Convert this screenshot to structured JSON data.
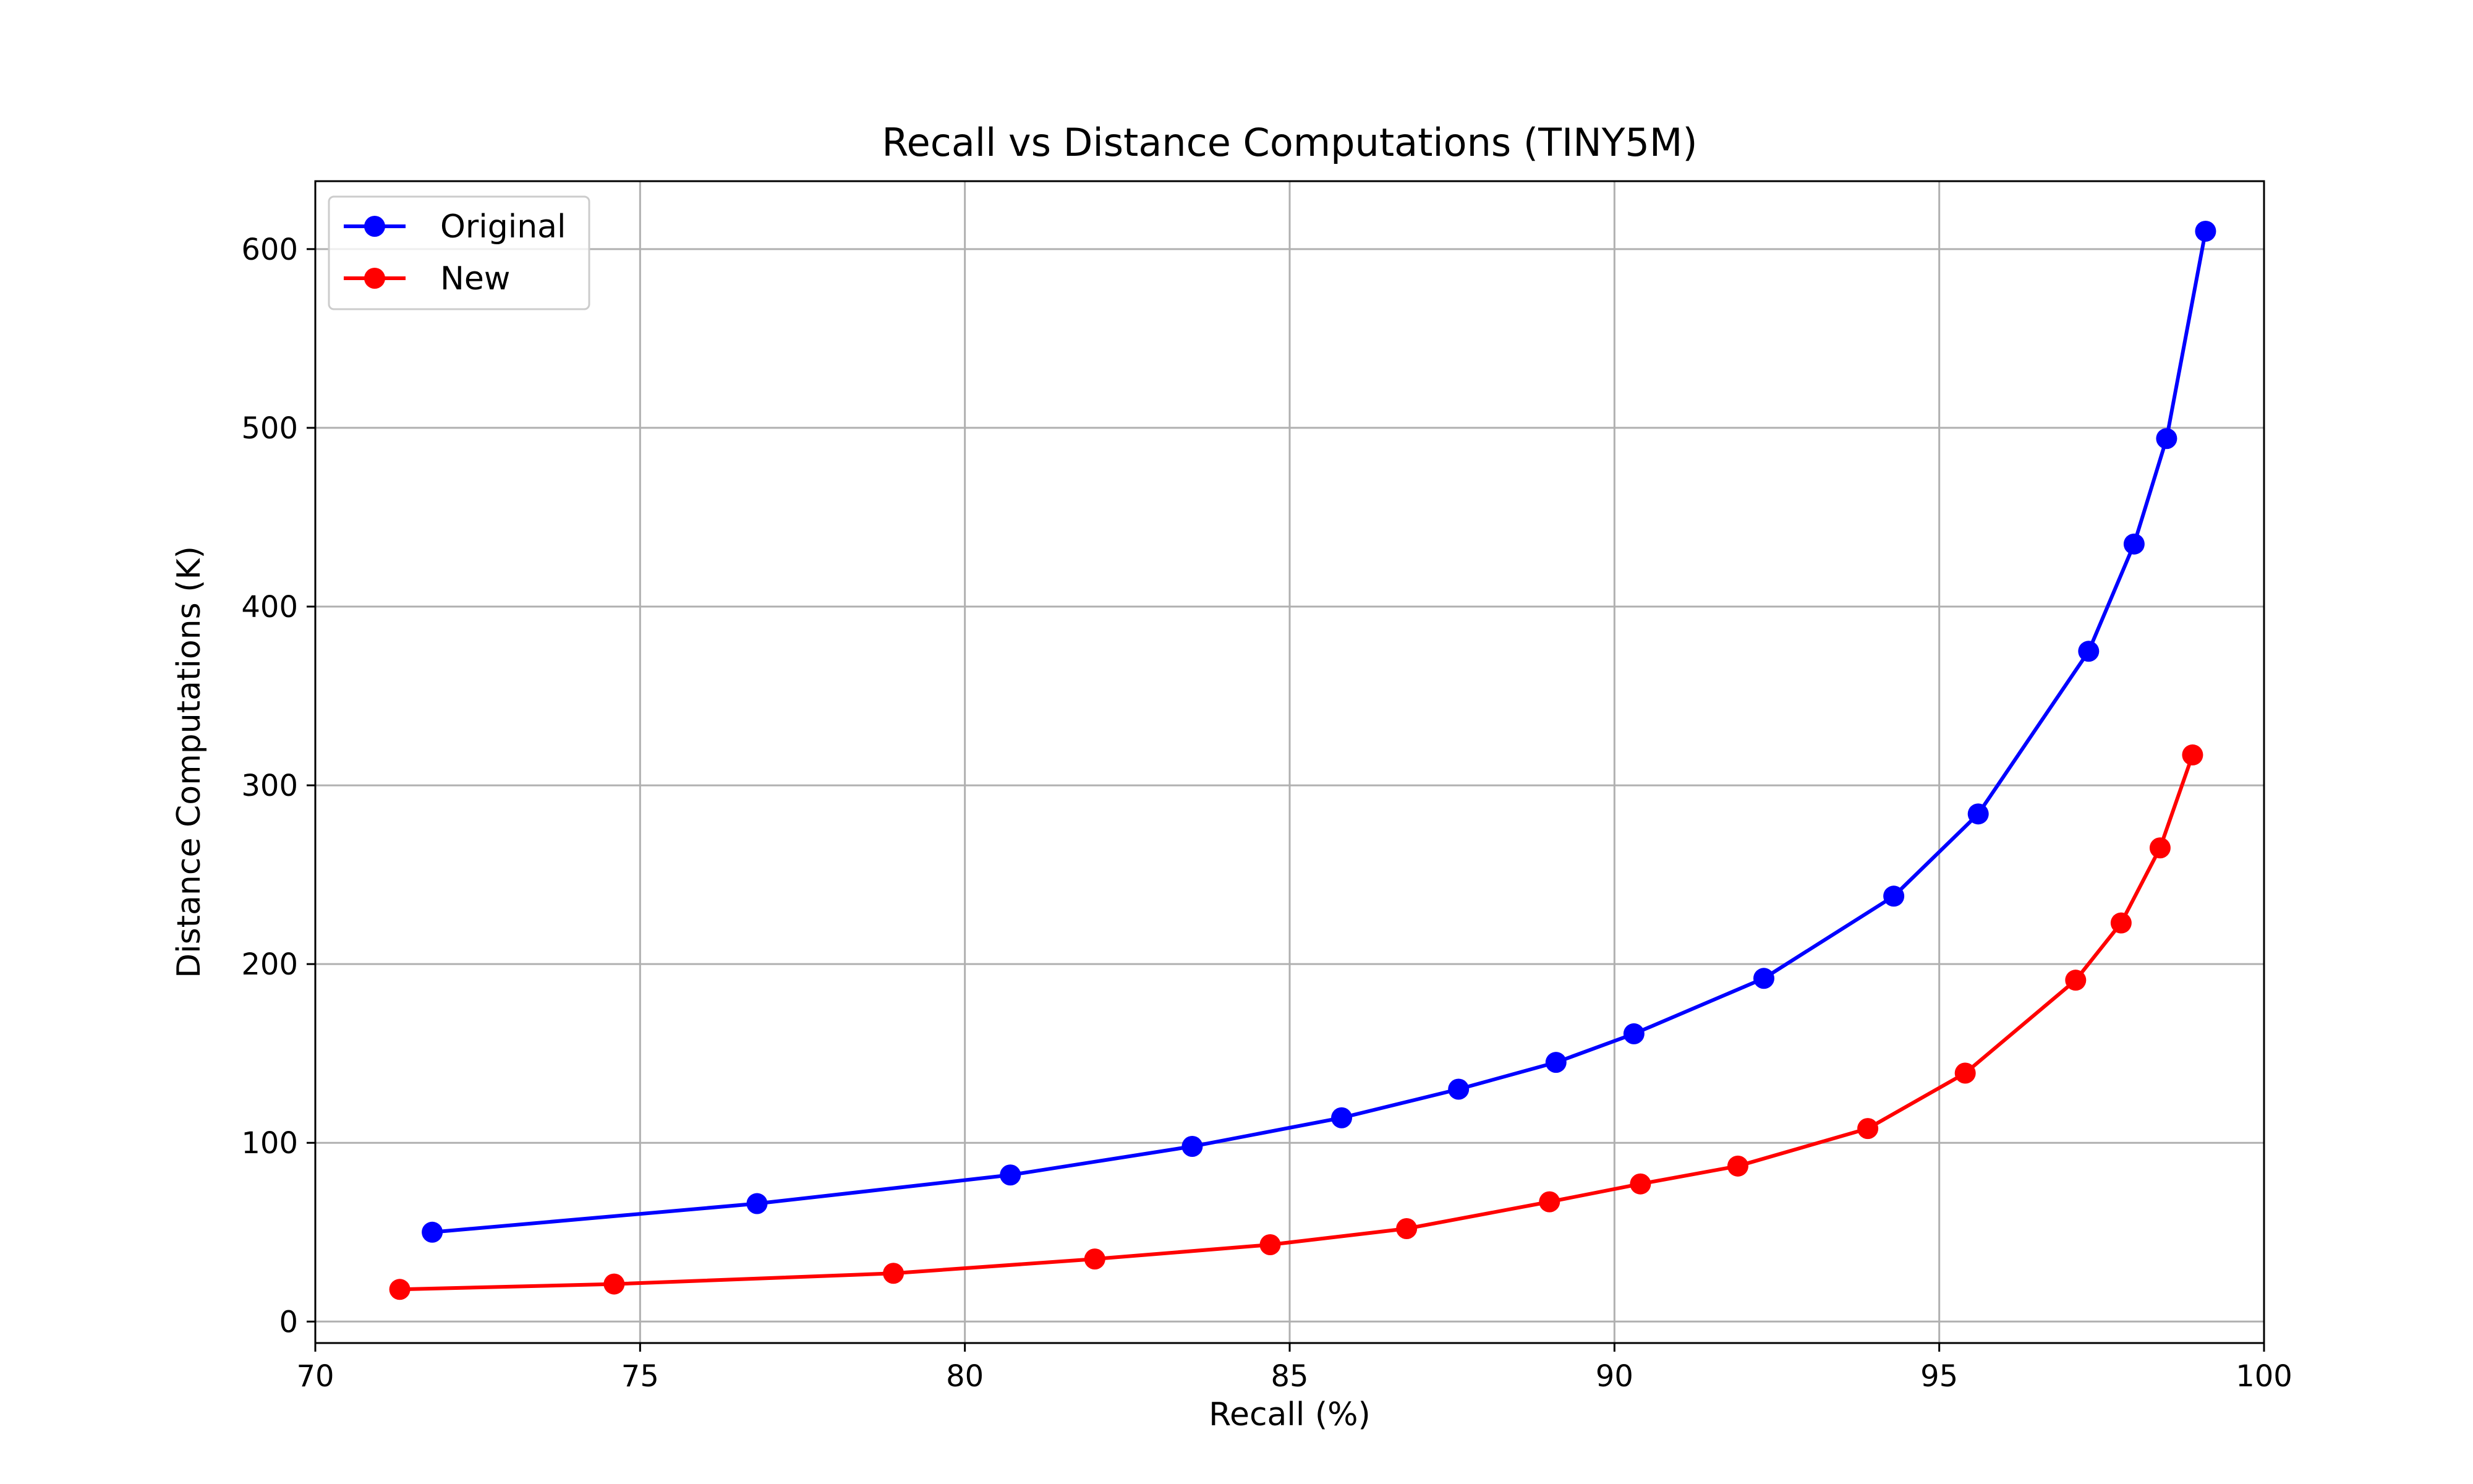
{
  "chart_data": {
    "type": "line",
    "title": "Recall vs Distance Computations (TINY5M)",
    "xlabel": "Recall (%)",
    "ylabel": "Distance Computations (K)",
    "xlim": [
      70,
      100
    ],
    "ylim": [
      -12,
      638
    ],
    "xticks": [
      70,
      75,
      80,
      85,
      90,
      95,
      100
    ],
    "yticks": [
      0,
      100,
      200,
      300,
      400,
      500,
      600
    ],
    "grid": true,
    "legend_position": "top-left",
    "series": [
      {
        "name": "Original",
        "color": "#0000ff",
        "x": [
          71.8,
          76.8,
          80.7,
          83.5,
          85.8,
          87.6,
          89.1,
          90.3,
          92.3,
          94.3,
          95.6,
          97.3,
          98.0,
          98.5,
          99.1
        ],
        "y": [
          50,
          66,
          82,
          98,
          114,
          130,
          145,
          161,
          192,
          238,
          284,
          375,
          435,
          494,
          610
        ]
      },
      {
        "name": "New",
        "color": "#ff0000",
        "x": [
          71.3,
          74.6,
          78.9,
          82.0,
          84.7,
          86.8,
          89.0,
          90.4,
          91.9,
          93.9,
          95.4,
          97.1,
          97.8,
          98.4,
          98.9
        ],
        "y": [
          18,
          21,
          27,
          35,
          43,
          52,
          67,
          77,
          87,
          108,
          139,
          191,
          223,
          265,
          317
        ]
      }
    ]
  }
}
